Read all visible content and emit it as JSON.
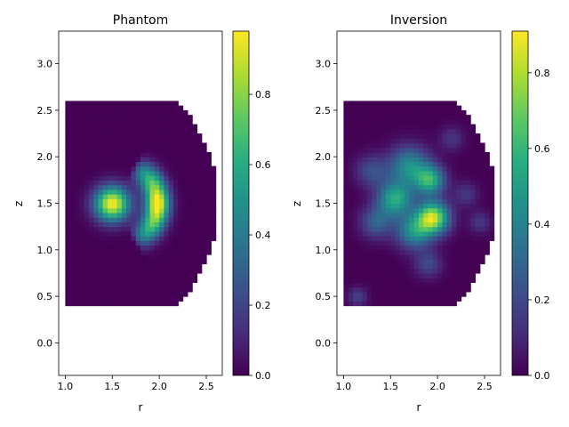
{
  "colormap": "viridis",
  "chart_data": [
    {
      "type": "heatmap",
      "title": "Phantom",
      "xlabel": "r",
      "ylabel": "z",
      "xlim": [
        0.93,
        2.67
      ],
      "ylim": [
        -0.35,
        3.35
      ],
      "xticks": [
        "1.0",
        "1.5",
        "2.0",
        "2.5"
      ],
      "yticks": [
        "0.0",
        "0.5",
        "1.0",
        "1.5",
        "2.0",
        "2.5",
        "3.0"
      ],
      "colorbar": {
        "min": 0.0,
        "max": 0.98,
        "ticks": [
          "0.0",
          "0.2",
          "0.4",
          "0.6",
          "0.8"
        ]
      },
      "domain": {
        "shape": "half-disc",
        "center": [
          1.0,
          1.5
        ],
        "radius": 1.62,
        "r_min": 1.0,
        "z_min": 0.4,
        "z_max": 2.6,
        "pixel_size": 0.05
      },
      "features": [
        {
          "kind": "gaussian_blob",
          "r": 1.5,
          "z": 1.5,
          "sigma": 0.13,
          "amplitude": 0.98
        },
        {
          "kind": "gaussian_ring",
          "r": 1.52,
          "z": 1.5,
          "radius": 0.46,
          "width": 0.09,
          "half_angle_deg": 62,
          "amplitude": 0.9
        },
        {
          "kind": "gaussian_blob",
          "r": 1.98,
          "z": 1.5,
          "sigma": 0.08,
          "amplitude": 0.15
        }
      ]
    },
    {
      "type": "heatmap",
      "title": "Inversion",
      "xlabel": "r",
      "ylabel": "z",
      "xlim": [
        0.93,
        2.67
      ],
      "ylim": [
        -0.35,
        3.35
      ],
      "xticks": [
        "1.0",
        "1.5",
        "2.0",
        "2.5"
      ],
      "yticks": [
        "0.0",
        "0.5",
        "1.0",
        "1.5",
        "2.0",
        "2.5",
        "3.0"
      ],
      "colorbar": {
        "min": 0.0,
        "max": 0.91,
        "ticks": [
          "0.0",
          "0.2",
          "0.4",
          "0.6",
          "0.8"
        ]
      },
      "domain": {
        "shape": "half-disc",
        "center": [
          1.0,
          1.5
        ],
        "radius": 1.62,
        "r_min": 1.0,
        "z_min": 0.4,
        "z_max": 2.6,
        "pixel_size": 0.05
      },
      "features": [
        {
          "kind": "gaussian_blob",
          "r": 1.95,
          "z": 1.35,
          "sigma": 0.12,
          "amplitude": 0.82
        },
        {
          "kind": "gaussian_blob",
          "r": 1.92,
          "z": 1.75,
          "sigma": 0.11,
          "amplitude": 0.55
        },
        {
          "kind": "gaussian_blob",
          "r": 1.55,
          "z": 1.55,
          "sigma": 0.13,
          "amplitude": 0.55
        },
        {
          "kind": "gaussian_blob",
          "r": 1.7,
          "z": 1.9,
          "sigma": 0.15,
          "amplitude": 0.45
        },
        {
          "kind": "gaussian_blob",
          "r": 1.75,
          "z": 1.2,
          "sigma": 0.13,
          "amplitude": 0.45
        },
        {
          "kind": "gaussian_blob",
          "r": 1.35,
          "z": 1.3,
          "sigma": 0.12,
          "amplitude": 0.28
        },
        {
          "kind": "gaussian_blob",
          "r": 1.3,
          "z": 1.85,
          "sigma": 0.12,
          "amplitude": 0.22
        },
        {
          "kind": "gaussian_blob",
          "r": 1.9,
          "z": 0.85,
          "sigma": 0.1,
          "amplitude": 0.2
        },
        {
          "kind": "gaussian_blob",
          "r": 2.3,
          "z": 1.6,
          "sigma": 0.09,
          "amplitude": 0.15
        },
        {
          "kind": "gaussian_blob",
          "r": 2.45,
          "z": 1.3,
          "sigma": 0.08,
          "amplitude": 0.15
        },
        {
          "kind": "gaussian_blob",
          "r": 1.15,
          "z": 0.5,
          "sigma": 0.07,
          "amplitude": 0.18
        },
        {
          "kind": "gaussian_blob",
          "r": 2.15,
          "z": 2.2,
          "sigma": 0.09,
          "amplitude": 0.14
        }
      ]
    }
  ]
}
